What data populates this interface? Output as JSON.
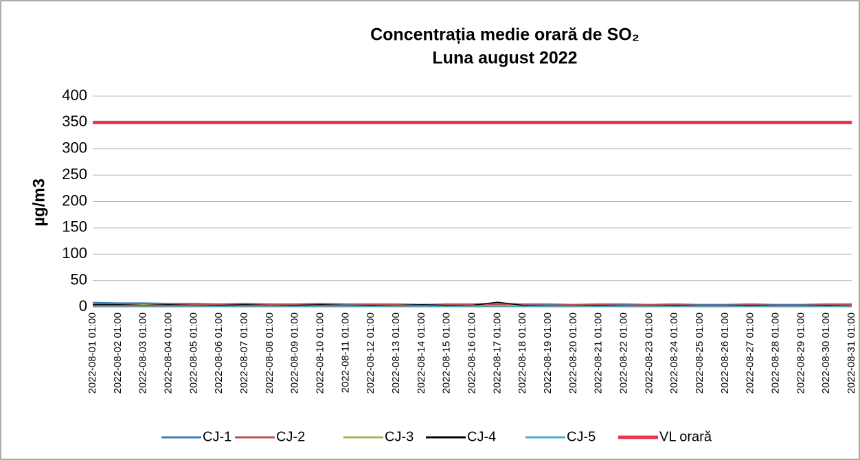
{
  "chart_data": {
    "type": "line",
    "title": "Concentrația medie orară de SO₂",
    "subtitle": "Luna  august 2022",
    "y_label": "µg/m3",
    "categories": [
      "2022-08-01 01:00",
      "2022-08-02 01:00",
      "2022-08-03 01:00",
      "2022-08-04 01:00",
      "2022-08-05 01:00",
      "2022-08-06 01:00",
      "2022-08-07 01:00",
      "2022-08-08 01:00",
      "2022-08-09 01:00",
      "2022-08-10 01:00",
      "2022-08-11 01:00",
      "2022-08-12 01:00",
      "2022-08-13 01:00",
      "2022-08-14 01:00",
      "2022-08-15 01:00",
      "2022-08-16 01:00",
      "2022-08-17 01:00",
      "2022-08-18 01:00",
      "2022-08-19 01:00",
      "2022-08-20 01:00",
      "2022-08-21 01:00",
      "2022-08-22 01:00",
      "2022-08-23 01:00",
      "2022-08-24 01:00",
      "2022-08-25 01:00",
      "2022-08-26 01:00",
      "2022-08-27 01:00",
      "2022-08-28 01:00",
      "2022-08-29 01:00",
      "2022-08-30 01:00",
      "2022-08-31 01:00"
    ],
    "series": [
      {
        "name": "CJ-1",
        "color": "#3b7fc1",
        "width": 2.5,
        "values": [
          8,
          7,
          7,
          6,
          6,
          5,
          6,
          5,
          5,
          6,
          5,
          5,
          5,
          4,
          5,
          5,
          6,
          5,
          5,
          4,
          5,
          5,
          4,
          5,
          4,
          4,
          5,
          4,
          4,
          5,
          5
        ]
      },
      {
        "name": "CJ-2",
        "color": "#c0504d",
        "width": 2,
        "values": [
          5,
          6,
          5,
          4,
          5,
          4,
          4,
          5,
          4,
          4,
          3,
          4,
          4,
          3,
          4,
          4,
          5,
          4,
          3,
          4,
          4,
          3,
          4,
          4,
          3,
          3,
          4,
          3,
          3,
          4,
          4
        ]
      },
      {
        "name": "CJ-3",
        "color": "#9bbb59",
        "width": 1.5,
        "values": [
          3,
          3,
          4,
          3,
          3,
          3,
          2,
          3,
          3,
          2,
          3,
          3,
          2,
          3,
          3,
          2,
          3,
          3,
          2,
          3,
          3,
          2,
          3,
          2,
          3,
          3,
          2,
          3,
          3,
          2,
          3
        ]
      },
      {
        "name": "CJ-4",
        "color": "#000000",
        "width": 1.5,
        "values": [
          4,
          4,
          3,
          4,
          3,
          3,
          4,
          3,
          3,
          4,
          3,
          3,
          3,
          4,
          3,
          3,
          9,
          3,
          3,
          3,
          3,
          3,
          3,
          3,
          3,
          3,
          3,
          3,
          3,
          3,
          3
        ]
      },
      {
        "name": "CJ-5",
        "color": "#4bacc6",
        "width": 2,
        "values": [
          2,
          2,
          2,
          2,
          2,
          1,
          2,
          2,
          1,
          2,
          2,
          1,
          2,
          2,
          1,
          2,
          2,
          1,
          2,
          2,
          1,
          2,
          2,
          1,
          2,
          2,
          1,
          2,
          2,
          1,
          2
        ]
      },
      {
        "name": "VL orară",
        "color": "#e8344e",
        "width": 5,
        "values": [
          350,
          350,
          350,
          350,
          350,
          350,
          350,
          350,
          350,
          350,
          350,
          350,
          350,
          350,
          350,
          350,
          350,
          350,
          350,
          350,
          350,
          350,
          350,
          350,
          350,
          350,
          350,
          350,
          350,
          350,
          350
        ]
      }
    ],
    "ylim": [
      0,
      400
    ],
    "yticks": [
      0,
      50,
      100,
      150,
      200,
      250,
      300,
      350,
      400
    ],
    "grid": true
  }
}
